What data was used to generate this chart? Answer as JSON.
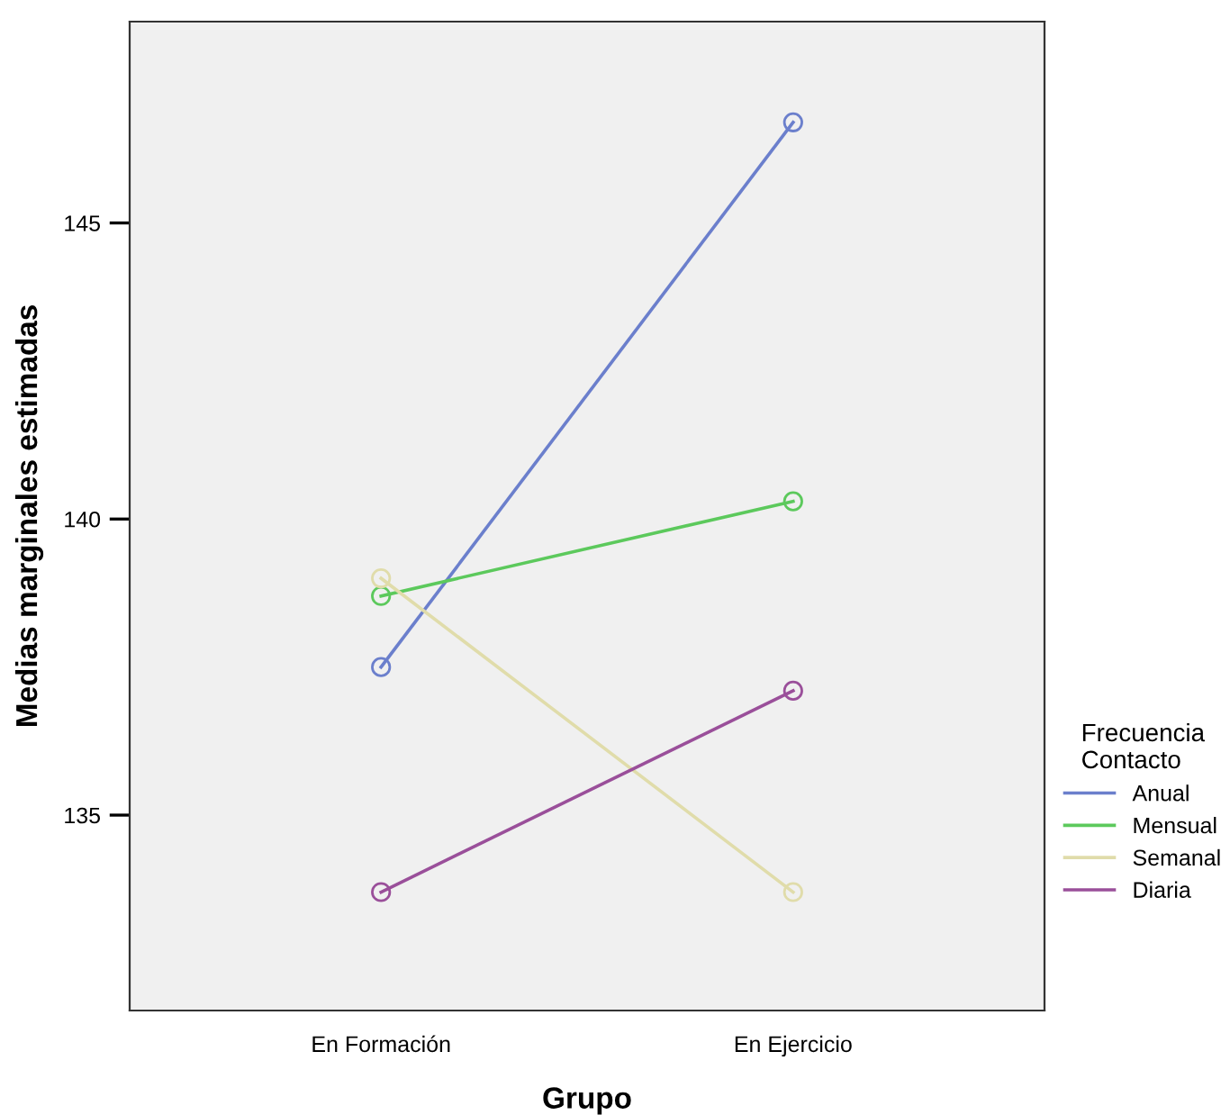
{
  "chart_data": {
    "type": "line",
    "xlabel": "Grupo",
    "ylabel": "Medias marginales estimadas",
    "legend_title": "Frecuencia\nContacto",
    "categories": [
      "En Formación",
      "En Ejercicio"
    ],
    "ylim": [
      131.7,
      148.4
    ],
    "yticks": [
      135,
      140,
      145
    ],
    "marker": "circle",
    "legend": "right",
    "grid": false,
    "series": [
      {
        "name": "Anual",
        "color": "#6b7fcc",
        "values": [
          137.5,
          146.7
        ]
      },
      {
        "name": "Mensual",
        "color": "#5cc95c",
        "values": [
          138.7,
          140.3
        ]
      },
      {
        "name": "Semanal",
        "color": "#e0dcaa",
        "values": [
          139.0,
          133.7
        ]
      },
      {
        "name": "Diaria",
        "color": "#9a4f9a",
        "values": [
          133.7,
          137.1
        ]
      }
    ]
  }
}
